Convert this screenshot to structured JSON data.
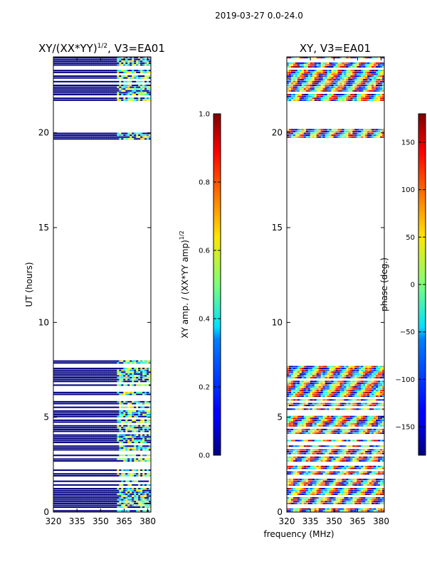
{
  "suptitle": "2019-03-27 0.0-24.0",
  "shared_xlabel": "frequency (MHz)",
  "chart_data": [
    {
      "type": "heatmap",
      "title_main": "XY/(XX*YY)",
      "title_sup": "1/2",
      "title_tail": ", V3=EA01",
      "xlabel": "",
      "ylabel": "UT (hours)",
      "xlim": [
        320,
        382
      ],
      "ylim": [
        0,
        24
      ],
      "xticks": [
        320,
        335,
        350,
        365,
        380
      ],
      "yticks": [
        0,
        5,
        10,
        15,
        20
      ],
      "data_pattern": "low values (~0) in 320–358 MHz, scattered 0.2–0.8 in 358–380 MHz",
      "colorbar": {
        "label_main": "XY amp. / (XX*YY amp)",
        "label_sup": "1/2",
        "range": [
          0.0,
          1.0
        ],
        "ticks": [
          "0.0",
          "0.2",
          "0.4",
          "0.6",
          "0.8",
          "1.0"
        ],
        "tick_values": [
          0.0,
          0.2,
          0.4,
          0.6,
          0.8,
          1.0
        ],
        "colormap": "jet"
      }
    },
    {
      "type": "heatmap",
      "title_main": "XY, V3=EA01",
      "xlabel": "frequency (MHz)",
      "ylabel": "",
      "xlim": [
        320,
        382
      ],
      "ylim": [
        0,
        24
      ],
      "xticks": [
        320,
        335,
        350,
        365,
        380
      ],
      "yticks": [
        0,
        5,
        10,
        15,
        20
      ],
      "data_pattern": "phase varying across full band, -180 to 180 deg",
      "colorbar": {
        "label_main": "phase (deg.)",
        "range": [
          -180,
          180
        ],
        "ticks": [
          "−150",
          "−100",
          "−50",
          "0",
          "50",
          "100",
          "150"
        ],
        "tick_values": [
          -150,
          -100,
          -50,
          0,
          50,
          100,
          150
        ],
        "colormap": "jet"
      }
    }
  ],
  "data_rows_ut": [
    {
      "start": 0.0,
      "end": 8.0
    },
    {
      "start": 19.7,
      "end": 20.2
    },
    {
      "start": 21.7,
      "end": 24.0
    }
  ]
}
